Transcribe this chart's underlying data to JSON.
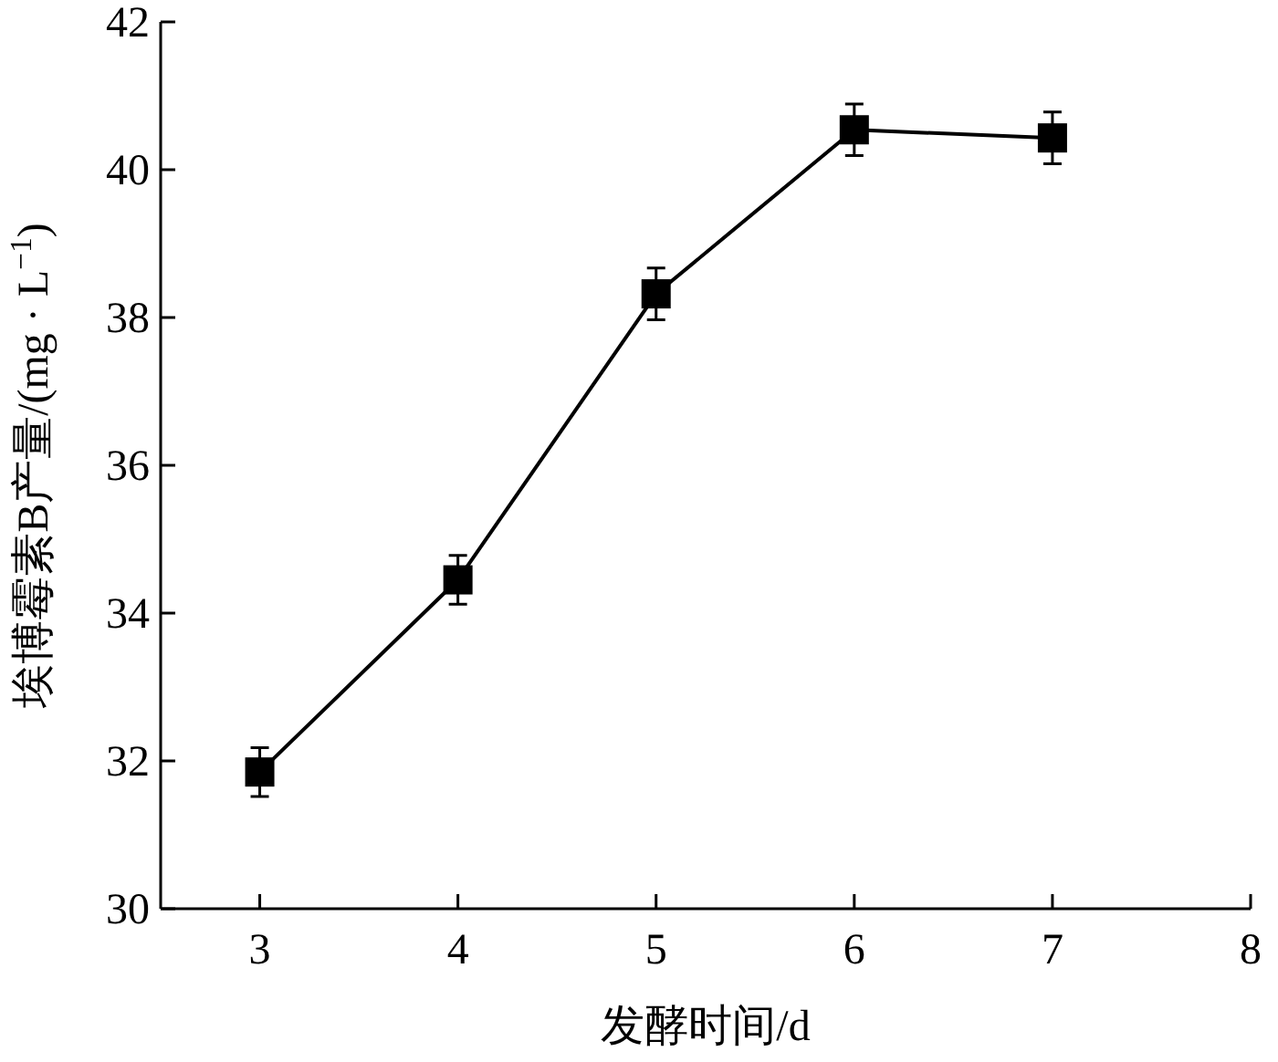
{
  "chart_data": {
    "type": "line",
    "xlabel": "发酵时间/d",
    "ylabel": "埃博霉素B产量/(mg · L$^{−1}$)",
    "x": [
      3,
      4,
      5,
      6,
      7
    ],
    "series": [
      {
        "color": "#000000",
        "values": [
          31.85,
          34.45,
          38.32,
          40.54,
          40.43
        ],
        "errors": [
          0.33,
          0.33,
          0.35,
          0.35,
          0.35
        ]
      }
    ],
    "xlim": [
      2.5,
      8
    ],
    "ylim": [
      30,
      42
    ],
    "xticks": [
      3,
      4,
      5,
      6,
      7,
      8
    ],
    "yticks": [
      30,
      32,
      34,
      36,
      38,
      40,
      42
    ],
    "marker": "square",
    "line_style": "solid"
  }
}
